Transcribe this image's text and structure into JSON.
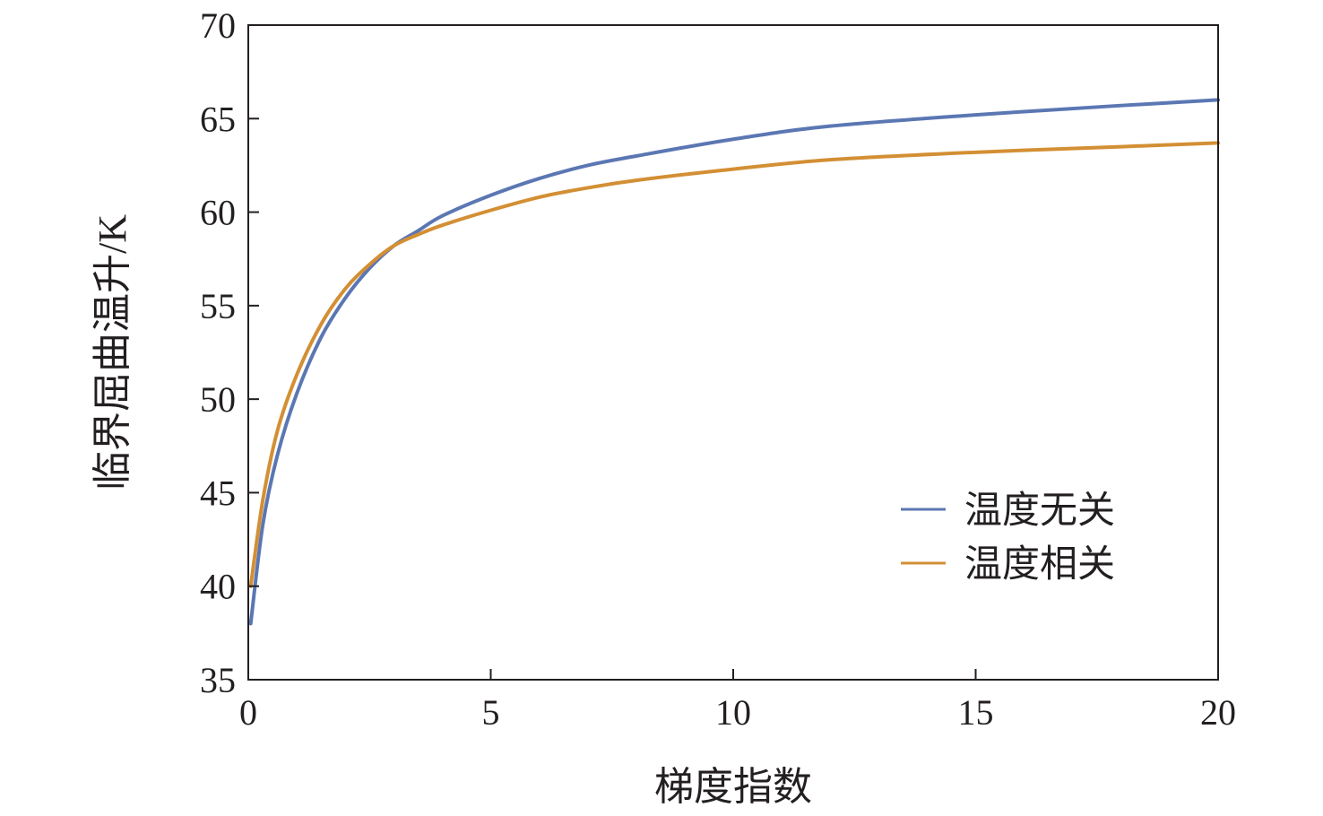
{
  "chart_data": {
    "type": "line",
    "xlabel": "梯度指数",
    "ylabel": "临界屈曲温升/K",
    "xlim": [
      0,
      20
    ],
    "ylim": [
      35,
      70
    ],
    "xticks": [
      0,
      5,
      10,
      15,
      20
    ],
    "yticks": [
      35,
      40,
      45,
      50,
      55,
      60,
      65,
      70
    ],
    "grid": false,
    "legend_position": "bottom-right",
    "series": [
      {
        "name": "温度无关",
        "color": "#5b77b3",
        "x": [
          0.05,
          0.3,
          0.6,
          1,
          1.5,
          2,
          2.5,
          3,
          3.5,
          4,
          5,
          6,
          7,
          8,
          10,
          12,
          15,
          18,
          20
        ],
        "y": [
          38.0,
          43.3,
          47.0,
          50.3,
          53.3,
          55.4,
          57.0,
          58.2,
          59.0,
          59.8,
          60.9,
          61.8,
          62.5,
          63.0,
          63.9,
          64.6,
          65.2,
          65.7,
          66.0
        ]
      },
      {
        "name": "温度相关",
        "color": "#d38f34",
        "x": [
          0.05,
          0.3,
          0.6,
          1,
          1.5,
          2,
          2.5,
          3,
          3.5,
          4,
          5,
          6,
          7,
          8,
          10,
          12,
          15,
          18,
          20
        ],
        "y": [
          40.0,
          44.6,
          48.3,
          51.3,
          54.0,
          55.9,
          57.2,
          58.2,
          58.8,
          59.3,
          60.1,
          60.8,
          61.3,
          61.7,
          62.3,
          62.8,
          63.2,
          63.5,
          63.7
        ]
      }
    ]
  }
}
